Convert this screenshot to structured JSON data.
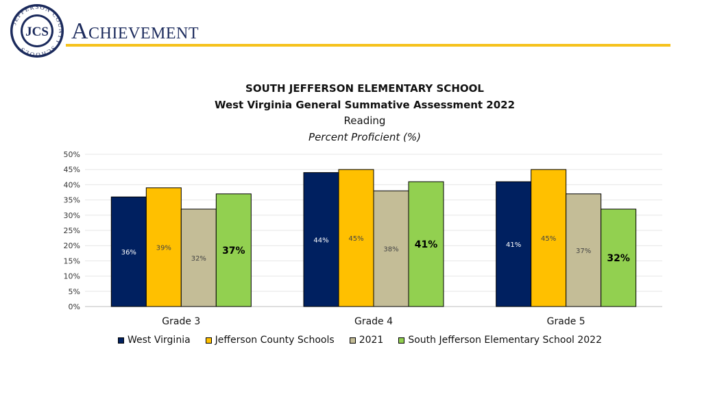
{
  "header": {
    "title": "Achievement",
    "logo_text": "JEFFERSON COUNTY SCHOOLS",
    "logo_monogram": "JCS"
  },
  "colors": {
    "navy": "#002060",
    "gold": "#ffc000",
    "tan": "#c4bd97",
    "green": "#92d050",
    "accent_rule": "#f6c21c"
  },
  "chart_data": {
    "type": "bar",
    "title": "SOUTH JEFFERSON ELEMENTARY SCHOOL",
    "subtitle": "West Virginia General Summative Assessment 2022",
    "subject": "Reading",
    "ylabel": "Percent Proficient (%)",
    "categories": [
      "Grade 3",
      "Grade 4",
      "Grade 5"
    ],
    "ylim": [
      0,
      50
    ],
    "yticks": [
      "0%",
      "5%",
      "10%",
      "15%",
      "20%",
      "25%",
      "30%",
      "35%",
      "40%",
      "45%",
      "50%"
    ],
    "grid": true,
    "legend_position": "bottom",
    "series": [
      {
        "name": "West Virginia",
        "values": [
          36,
          44,
          41
        ],
        "labels": [
          "36%",
          "44%",
          "41%"
        ],
        "color": "#002060",
        "label_color": "#ffffff"
      },
      {
        "name": "Jefferson County Schools",
        "values": [
          39,
          45,
          45
        ],
        "labels": [
          "39%",
          "45%",
          "45%"
        ],
        "color": "#ffc000",
        "label_color": "#444444"
      },
      {
        "name": "2021",
        "values": [
          32,
          38,
          37
        ],
        "labels": [
          "32%",
          "38%",
          "37%"
        ],
        "color": "#c4bd97",
        "label_color": "#444444"
      },
      {
        "name": "South Jefferson Elementary School 2022",
        "values": [
          37,
          41,
          32
        ],
        "labels": [
          "37%",
          "41%",
          "32%"
        ],
        "color": "#92d050",
        "label_color": "#000000",
        "bold": true
      }
    ]
  }
}
